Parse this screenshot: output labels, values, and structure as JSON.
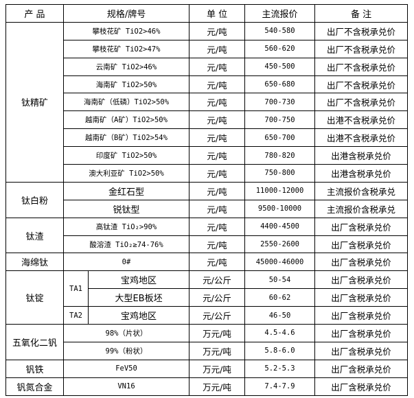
{
  "header": {
    "product": "产  品",
    "spec": "规格/牌号",
    "unit": "单 位",
    "price": "主流报价",
    "remark": "备  注"
  },
  "groups": [
    {
      "product": "钛精矿",
      "rows": [
        {
          "spec": "攀枝花矿 TiO2>46%",
          "unit": "元/吨",
          "price": "540-580",
          "remark": "出厂不含税承兑价"
        },
        {
          "spec": "攀枝花矿 TiO2>47%",
          "unit": "元/吨",
          "price": "560-620",
          "remark": "出厂不含税承兑价"
        },
        {
          "spec": "云南矿 TiO2>46%",
          "unit": "元/吨",
          "price": "450-500",
          "remark": "出厂不含税承兑价"
        },
        {
          "spec": "海南矿 TiO2>50%",
          "unit": "元/吨",
          "price": "650-680",
          "remark": "出厂不含税承兑价"
        },
        {
          "spec": "海南矿（低磷）TiO2>50%",
          "unit": "元/吨",
          "price": "700-730",
          "remark": "出厂不含税承兑价"
        },
        {
          "spec": "越南矿（A矿）TiO2>50%",
          "unit": "元/吨",
          "price": "700-750",
          "remark": "出港不含税承兑价"
        },
        {
          "spec": "越南矿（B矿）TiO2>54%",
          "unit": "元/吨",
          "price": "650-700",
          "remark": "出港不含税承兑价"
        },
        {
          "spec": "印度矿 TiO2>50%",
          "unit": "元/吨",
          "price": "780-820",
          "remark": "出港含税承兑价"
        },
        {
          "spec": "澳大利亚矿 TiO2>50%",
          "unit": "元/吨",
          "price": "750-800",
          "remark": "出港含税承兑价"
        }
      ]
    },
    {
      "product": "钛白粉",
      "rows": [
        {
          "spec": "金红石型",
          "unit": "元/吨",
          "price": "11000-12000",
          "remark": "主流报价含税承兑"
        },
        {
          "spec": "锐钛型",
          "unit": "元/吨",
          "price": "9500-10000",
          "remark": "主流报价含税承兑"
        }
      ]
    },
    {
      "product": "钛渣",
      "rows": [
        {
          "spec": "高钛渣 TiO₂>90%",
          "unit": "元/吨",
          "price": "4400-4500",
          "remark": "出厂含税承兑价"
        },
        {
          "spec": "酸溶渣 TiO₂≥74-76%",
          "unit": "元/吨",
          "price": "2550-2600",
          "remark": "出厂含税承兑价"
        }
      ]
    },
    {
      "product": "海绵钛",
      "rows": [
        {
          "spec": "0#",
          "unit": "元/吨",
          "price": "45000-46000",
          "remark": "出厂含税承兑价"
        }
      ]
    },
    {
      "product": "钛锭",
      "grades": [
        "TA1",
        "TA2"
      ],
      "rows": [
        {
          "spec": "宝鸡地区",
          "unit": "元/公斤",
          "price": "50-54",
          "remark": "出厂含税承兑价"
        },
        {
          "spec": "大型EB板坯",
          "unit": "元/公斤",
          "price": "60-62",
          "remark": "出厂含税承兑价"
        },
        {
          "spec": "宝鸡地区",
          "unit": "元/公斤",
          "price": "46-50",
          "remark": "出厂含税承兑价"
        }
      ]
    },
    {
      "product": "五氧化二钒",
      "rows": [
        {
          "spec": "98%（片状）",
          "unit": "万元/吨",
          "price": "4.5-4.6",
          "remark": "出厂含税承兑价"
        },
        {
          "spec": "99%（粉状）",
          "unit": "万元/吨",
          "price": "5.8-6.0",
          "remark": "出厂含税承兑价"
        }
      ]
    },
    {
      "product": "钒铁",
      "rows": [
        {
          "spec": "FeV50",
          "unit": "万元/吨",
          "price": "5.2-5.3",
          "remark": "出厂含税承兑价"
        }
      ]
    },
    {
      "product": "钒氮合金",
      "rows": [
        {
          "spec": "VN16",
          "unit": "万元/吨",
          "price": "7.4-7.9",
          "remark": "出厂含税承兑价"
        }
      ]
    }
  ]
}
